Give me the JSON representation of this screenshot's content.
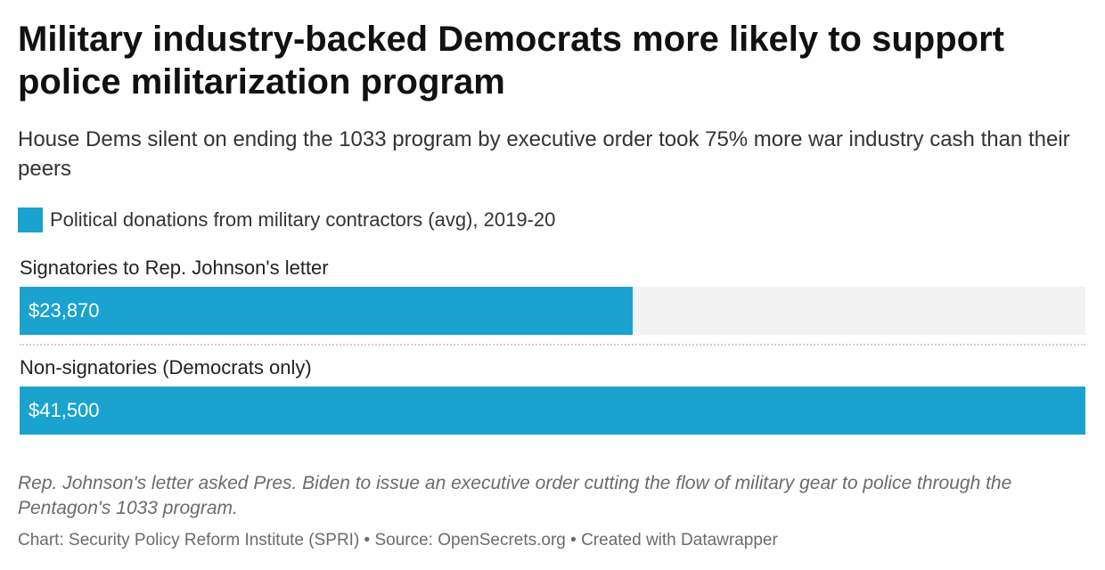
{
  "header": {
    "title": "Military industry-backed Democrats more likely to support police militarization program",
    "subtitle": "House Dems silent on ending the 1033 program by executive order took 75% more war industry cash than their peers"
  },
  "colors": {
    "bar": "#1aa3cf",
    "track": "#f2f2f2"
  },
  "chart_data": {
    "type": "bar",
    "orientation": "horizontal",
    "title": "Military industry-backed Democrats more likely to support police militarization program",
    "subtitle": "House Dems silent on ending the 1033 program by executive order took 75% more war industry cash than their peers",
    "legend_position": "top-left",
    "grid": false,
    "xlim": [
      0,
      41500
    ],
    "categories": [
      "Signatories to Rep. Johnson's letter",
      "Non-signatories (Democrats only)"
    ],
    "series": [
      {
        "name": "Political donations from military contractors (avg), 2019-20",
        "values": [
          23870,
          41500
        ],
        "labels": [
          "$23,870",
          "$41,500"
        ]
      }
    ]
  },
  "footer": {
    "note": "Rep. Johnson's letter asked Pres. Biden to issue an executive order cutting the flow of military gear to police through the Pentagon's 1033 program.",
    "credit": "Chart: Security Policy Reform Institute (SPRI) • Source: OpenSecrets.org • Created with Datawrapper"
  }
}
